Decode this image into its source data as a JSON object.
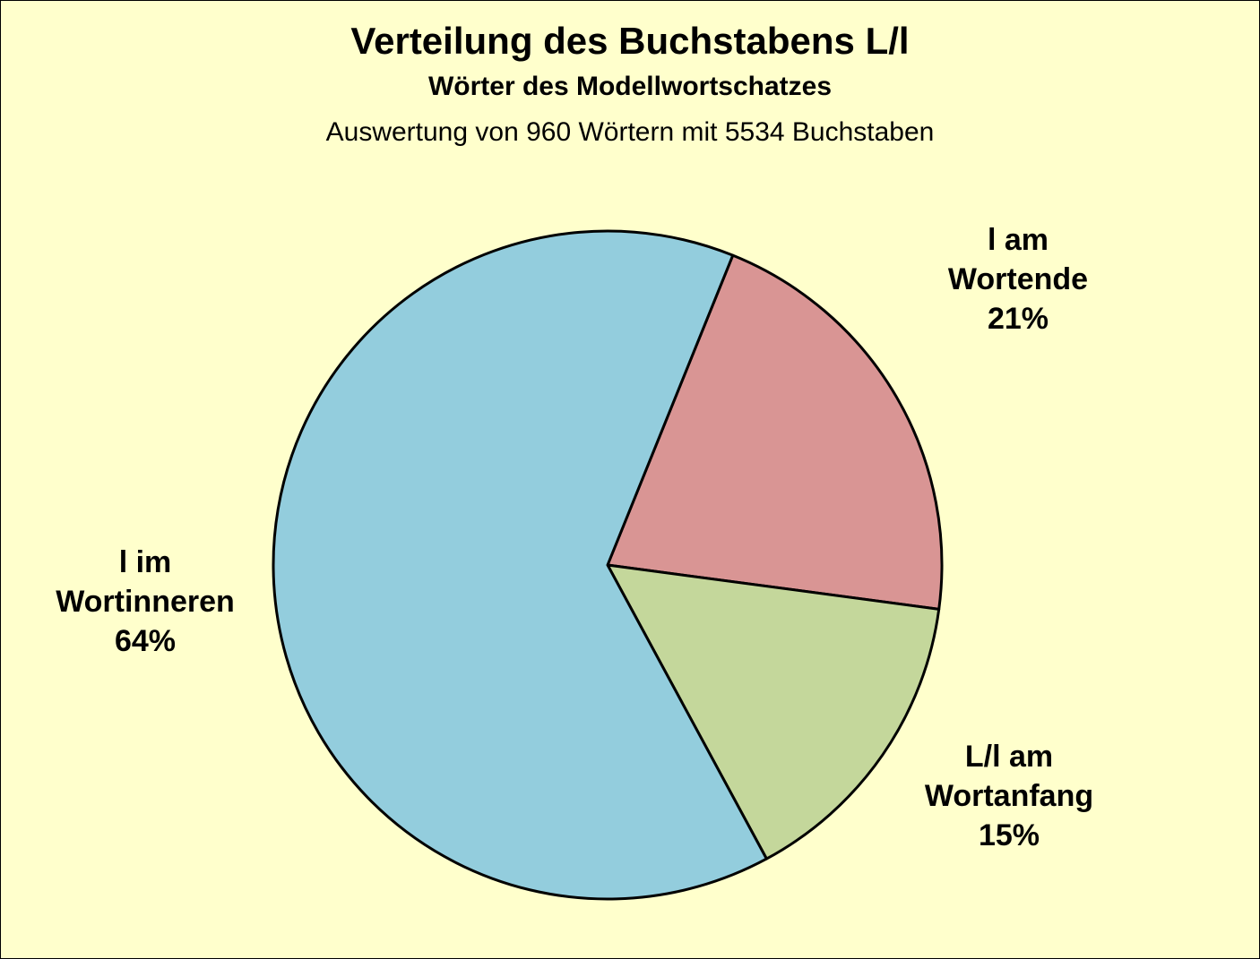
{
  "chart_data": {
    "type": "pie",
    "title": "Verteilung des Buchstabens L/l",
    "subtitle": "Wörter des Modellwortschatzes",
    "note": "Auswertung von 960 Wörtern mit 5534 Buchstaben",
    "background_color": "#ffffcc",
    "slices": [
      {
        "name": "l am Wortende",
        "line1": "l am",
        "line2": "Wortende",
        "value": 21,
        "value_label": "21%",
        "color": "#d99594"
      },
      {
        "name": "L/l am Wortanfang",
        "line1": "L/l am",
        "line2": "Wortanfang",
        "value": 15,
        "value_label": "15%",
        "color": "#c4d79b"
      },
      {
        "name": "l im Wortinneren",
        "line1": "l im",
        "line2": "Wortinneren",
        "value": 64,
        "value_label": "64%",
        "color": "#93cddd"
      }
    ]
  }
}
